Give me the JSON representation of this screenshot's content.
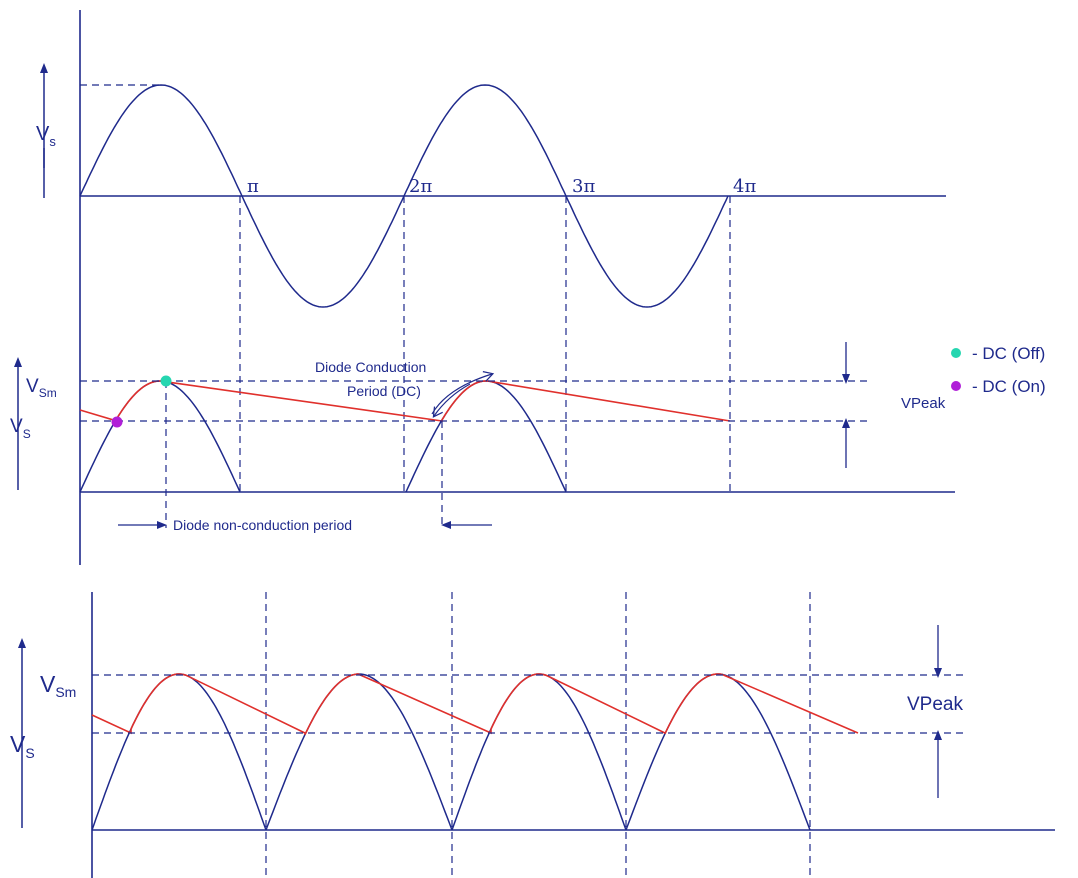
{
  "colors": {
    "wave": "#1f2a8c",
    "ripple": "#e0302c",
    "dc_off": "#25d6b0",
    "dc_on": "#b020d8"
  },
  "panel1": {
    "y_label_main": "V",
    "y_label_sub": "s",
    "ticks": [
      "π",
      "2π",
      "3π",
      "4π"
    ]
  },
  "panel2": {
    "vsm_main": "V",
    "vsm_sub": "Sm",
    "vs_main": "V",
    "vs_sub": "S",
    "conduction_line1": "Diode Conduction",
    "conduction_line2": "Period (DC)",
    "nonconduction": "Diode non-conduction period",
    "vpeak": "VPeak"
  },
  "legend": {
    "off_label": "- DC (Off)",
    "on_label": "- DC (On)"
  },
  "panel3": {
    "vsm_main": "V",
    "vsm_sub": "Sm",
    "vs_main": "V",
    "vs_sub": "S",
    "vpeak": "VPeak"
  }
}
